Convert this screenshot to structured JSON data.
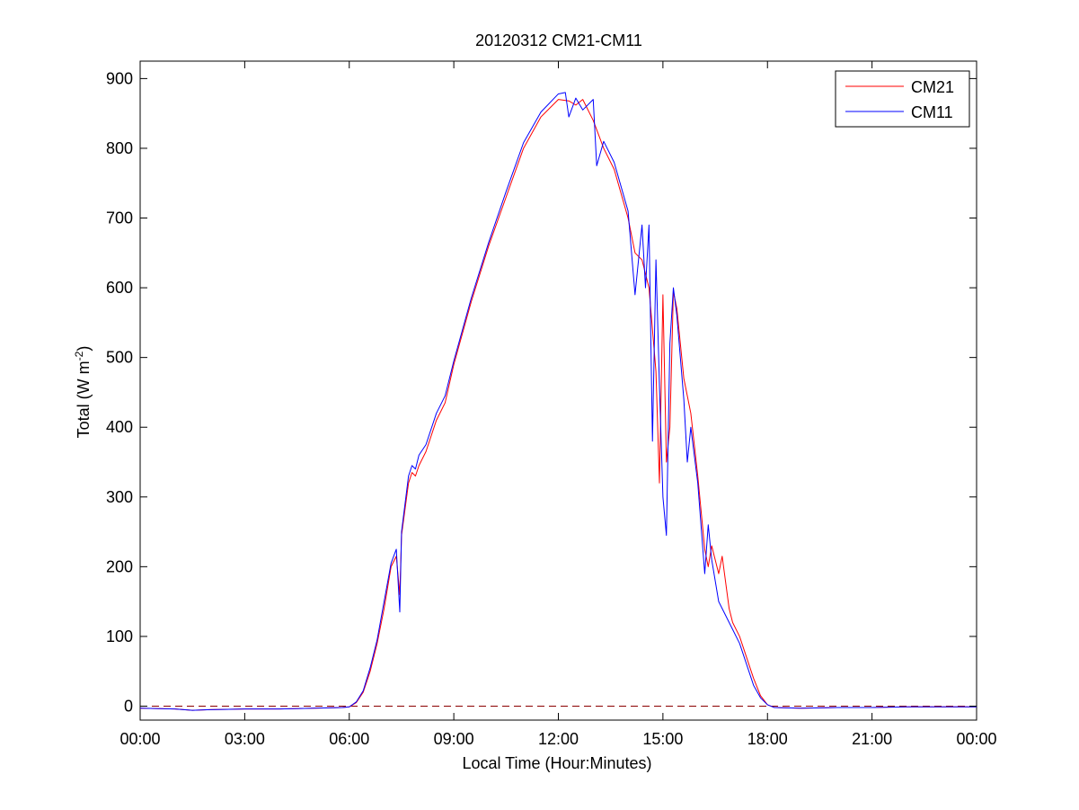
{
  "figure": {
    "title": "20120312 CM21-CM11",
    "xlabel": "Local Time (Hour:Minutes)",
    "ylabel_main": "Total (W m",
    "ylabel_sup": "-2",
    "ylabel_close": ")"
  },
  "legend": {
    "entries": [
      {
        "name": "CM21",
        "color": "#ff0000"
      },
      {
        "name": "CM11",
        "color": "#0000ff"
      }
    ],
    "placement": "top-right"
  },
  "chart_data": {
    "type": "line",
    "xlim_hours": [
      0,
      24
    ],
    "ylim": [
      -20,
      925
    ],
    "x_ticks": [
      {
        "label": "00:00",
        "hours": 0
      },
      {
        "label": "03:00",
        "hours": 3
      },
      {
        "label": "06:00",
        "hours": 6
      },
      {
        "label": "09:00",
        "hours": 9
      },
      {
        "label": "12:00",
        "hours": 12
      },
      {
        "label": "15:00",
        "hours": 15
      },
      {
        "label": "18:00",
        "hours": 18
      },
      {
        "label": "21:00",
        "hours": 21
      },
      {
        "label": "00:00",
        "hours": 24
      }
    ],
    "y_ticks": [
      0,
      100,
      200,
      300,
      400,
      500,
      600,
      700,
      800,
      900
    ],
    "grid": false,
    "zero_line": {
      "value": 0,
      "style": "dashed",
      "color": "#8b0000"
    },
    "series": [
      {
        "name": "CM21",
        "color": "#ff0000",
        "points": [
          [
            0,
            -3
          ],
          [
            1,
            -4
          ],
          [
            1.5,
            -6
          ],
          [
            2,
            -5
          ],
          [
            3,
            -4
          ],
          [
            4,
            -4
          ],
          [
            5,
            -3
          ],
          [
            5.8,
            -2
          ],
          [
            6.0,
            -1
          ],
          [
            6.2,
            5
          ],
          [
            6.4,
            20
          ],
          [
            6.6,
            50
          ],
          [
            6.8,
            90
          ],
          [
            7.0,
            140
          ],
          [
            7.2,
            200
          ],
          [
            7.35,
            215
          ],
          [
            7.45,
            160
          ],
          [
            7.5,
            245
          ],
          [
            7.7,
            320
          ],
          [
            7.8,
            335
          ],
          [
            7.9,
            330
          ],
          [
            8.0,
            345
          ],
          [
            8.2,
            365
          ],
          [
            8.5,
            410
          ],
          [
            8.75,
            435
          ],
          [
            9.0,
            490
          ],
          [
            9.5,
            580
          ],
          [
            10.0,
            660
          ],
          [
            10.5,
            730
          ],
          [
            11.0,
            800
          ],
          [
            11.5,
            845
          ],
          [
            12.0,
            870
          ],
          [
            12.3,
            868
          ],
          [
            12.5,
            862
          ],
          [
            12.7,
            870
          ],
          [
            13.0,
            840
          ],
          [
            13.3,
            800
          ],
          [
            13.6,
            770
          ],
          [
            14.0,
            700
          ],
          [
            14.2,
            650
          ],
          [
            14.4,
            640
          ],
          [
            14.6,
            600
          ],
          [
            14.8,
            480
          ],
          [
            14.9,
            320
          ],
          [
            15.0,
            590
          ],
          [
            15.1,
            350
          ],
          [
            15.2,
            400
          ],
          [
            15.3,
            595
          ],
          [
            15.4,
            570
          ],
          [
            15.6,
            470
          ],
          [
            15.8,
            420
          ],
          [
            16.0,
            330
          ],
          [
            16.2,
            225
          ],
          [
            16.3,
            200
          ],
          [
            16.4,
            230
          ],
          [
            16.6,
            190
          ],
          [
            16.7,
            215
          ],
          [
            16.9,
            140
          ],
          [
            17.0,
            120
          ],
          [
            17.2,
            100
          ],
          [
            17.4,
            70
          ],
          [
            17.6,
            40
          ],
          [
            17.8,
            15
          ],
          [
            18.0,
            2
          ],
          [
            18.2,
            -2
          ],
          [
            19,
            -3
          ],
          [
            20,
            -2
          ],
          [
            21,
            -2
          ],
          [
            22,
            -1
          ],
          [
            23,
            -1
          ],
          [
            24,
            -1
          ]
        ]
      },
      {
        "name": "CM11",
        "color": "#0000ff",
        "points": [
          [
            0,
            -3
          ],
          [
            1,
            -4
          ],
          [
            1.5,
            -6
          ],
          [
            2,
            -5
          ],
          [
            3,
            -4
          ],
          [
            4,
            -4
          ],
          [
            5,
            -3
          ],
          [
            5.8,
            -2
          ],
          [
            6.0,
            -1
          ],
          [
            6.2,
            6
          ],
          [
            6.4,
            22
          ],
          [
            6.6,
            55
          ],
          [
            6.8,
            95
          ],
          [
            7.0,
            150
          ],
          [
            7.2,
            205
          ],
          [
            7.35,
            225
          ],
          [
            7.45,
            135
          ],
          [
            7.5,
            250
          ],
          [
            7.7,
            330
          ],
          [
            7.8,
            345
          ],
          [
            7.9,
            340
          ],
          [
            8.0,
            360
          ],
          [
            8.2,
            375
          ],
          [
            8.5,
            420
          ],
          [
            8.75,
            445
          ],
          [
            9.0,
            495
          ],
          [
            9.5,
            585
          ],
          [
            10.0,
            665
          ],
          [
            10.5,
            738
          ],
          [
            11.0,
            808
          ],
          [
            11.5,
            852
          ],
          [
            12.0,
            878
          ],
          [
            12.2,
            880
          ],
          [
            12.3,
            845
          ],
          [
            12.5,
            872
          ],
          [
            12.7,
            855
          ],
          [
            13.0,
            870
          ],
          [
            13.1,
            775
          ],
          [
            13.3,
            810
          ],
          [
            13.6,
            780
          ],
          [
            14.0,
            710
          ],
          [
            14.2,
            590
          ],
          [
            14.4,
            690
          ],
          [
            14.5,
            600
          ],
          [
            14.6,
            690
          ],
          [
            14.7,
            380
          ],
          [
            14.8,
            640
          ],
          [
            14.9,
            460
          ],
          [
            15.0,
            300
          ],
          [
            15.1,
            245
          ],
          [
            15.2,
            520
          ],
          [
            15.3,
            600
          ],
          [
            15.4,
            560
          ],
          [
            15.6,
            440
          ],
          [
            15.7,
            350
          ],
          [
            15.8,
            400
          ],
          [
            16.0,
            320
          ],
          [
            16.2,
            190
          ],
          [
            16.3,
            260
          ],
          [
            16.4,
            210
          ],
          [
            16.6,
            150
          ],
          [
            16.8,
            130
          ],
          [
            17.0,
            110
          ],
          [
            17.2,
            90
          ],
          [
            17.4,
            60
          ],
          [
            17.6,
            30
          ],
          [
            17.8,
            12
          ],
          [
            18.0,
            2
          ],
          [
            18.2,
            -2
          ],
          [
            19,
            -3
          ],
          [
            20,
            -2
          ],
          [
            21,
            -2
          ],
          [
            22,
            -1
          ],
          [
            23,
            -1
          ],
          [
            24,
            -1
          ]
        ]
      }
    ]
  }
}
